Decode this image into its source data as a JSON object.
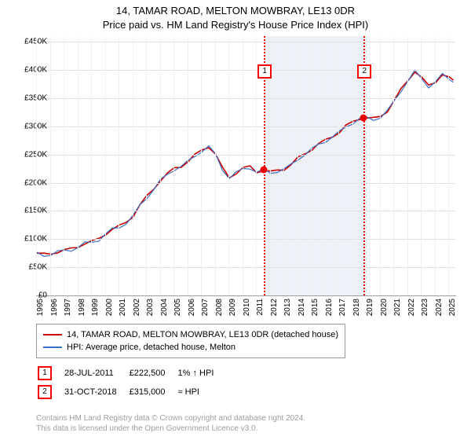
{
  "title_line1": "14, TAMAR ROAD, MELTON MOWBRAY, LE13 0DR",
  "title_line2": "Price paid vs. HM Land Registry's House Price Index (HPI)",
  "chart": {
    "x_start_year": 1995,
    "x_end_year": 2025.5,
    "x_ticks": [
      1995,
      1996,
      1997,
      1998,
      1999,
      2000,
      2001,
      2002,
      2003,
      2004,
      2005,
      2006,
      2007,
      2008,
      2009,
      2010,
      2011,
      2012,
      2013,
      2014,
      2015,
      2016,
      2017,
      2018,
      2019,
      2020,
      2021,
      2022,
      2023,
      2024,
      2025
    ],
    "y_min": 0,
    "y_max": 460000,
    "y_ticks": [
      0,
      50000,
      100000,
      150000,
      200000,
      250000,
      300000,
      350000,
      400000,
      450000
    ],
    "y_tick_labels": [
      "£0",
      "£50K",
      "£100K",
      "£150K",
      "£200K",
      "£250K",
      "£300K",
      "£350K",
      "£400K",
      "£450K"
    ],
    "grid_color": "#e0e0e0",
    "grid_color_minor": "#f0f0f0",
    "band": {
      "start": 2011.57,
      "end": 2018.83,
      "color": "#eef2f8"
    },
    "series": [
      {
        "name": "property",
        "color": "#cc0000",
        "width": 1.6,
        "data": [
          [
            1995.0,
            75000
          ],
          [
            1995.5,
            72000
          ],
          [
            1996.0,
            74000
          ],
          [
            1996.5,
            78000
          ],
          [
            1997.0,
            80000
          ],
          [
            1997.5,
            82000
          ],
          [
            1998.0,
            87000
          ],
          [
            1998.5,
            93000
          ],
          [
            1999.0,
            95000
          ],
          [
            1999.5,
            100000
          ],
          [
            2000.0,
            110000
          ],
          [
            2000.5,
            118000
          ],
          [
            2001.0,
            122000
          ],
          [
            2001.5,
            130000
          ],
          [
            2002.0,
            142000
          ],
          [
            2002.5,
            160000
          ],
          [
            2003.0,
            175000
          ],
          [
            2003.5,
            190000
          ],
          [
            2004.0,
            205000
          ],
          [
            2004.5,
            215000
          ],
          [
            2005.0,
            225000
          ],
          [
            2005.5,
            230000
          ],
          [
            2006.0,
            238000
          ],
          [
            2006.5,
            248000
          ],
          [
            2007.0,
            258000
          ],
          [
            2007.5,
            265000
          ],
          [
            2008.0,
            250000
          ],
          [
            2008.5,
            225000
          ],
          [
            2009.0,
            210000
          ],
          [
            2009.5,
            218000
          ],
          [
            2010.0,
            225000
          ],
          [
            2010.5,
            228000
          ],
          [
            2011.0,
            220000
          ],
          [
            2011.5,
            222500
          ],
          [
            2012.0,
            218000
          ],
          [
            2012.5,
            222000
          ],
          [
            2013.0,
            225000
          ],
          [
            2013.5,
            232000
          ],
          [
            2014.0,
            243000
          ],
          [
            2014.5,
            252000
          ],
          [
            2015.0,
            260000
          ],
          [
            2015.5,
            268000
          ],
          [
            2016.0,
            275000
          ],
          [
            2016.5,
            283000
          ],
          [
            2017.0,
            290000
          ],
          [
            2017.5,
            300000
          ],
          [
            2018.0,
            308000
          ],
          [
            2018.5,
            315000
          ],
          [
            2019.0,
            315000
          ],
          [
            2019.5,
            313000
          ],
          [
            2020.0,
            318000
          ],
          [
            2020.5,
            328000
          ],
          [
            2021.0,
            345000
          ],
          [
            2021.5,
            365000
          ],
          [
            2022.0,
            383000
          ],
          [
            2022.5,
            398000
          ],
          [
            2023.0,
            385000
          ],
          [
            2023.5,
            372000
          ],
          [
            2024.0,
            380000
          ],
          [
            2024.5,
            392000
          ],
          [
            2025.0,
            385000
          ],
          [
            2025.3,
            382000
          ]
        ]
      },
      {
        "name": "hpi",
        "color": "#3b6fc4",
        "width": 1.2,
        "data": [
          [
            1995.0,
            74000
          ],
          [
            1995.5,
            71000
          ],
          [
            1996.0,
            73000
          ],
          [
            1996.5,
            77000
          ],
          [
            1997.0,
            79000
          ],
          [
            1997.5,
            81000
          ],
          [
            1998.0,
            86000
          ],
          [
            1998.5,
            92000
          ],
          [
            1999.0,
            94000
          ],
          [
            1999.5,
            99000
          ],
          [
            2000.0,
            109000
          ],
          [
            2000.5,
            117000
          ],
          [
            2001.0,
            121000
          ],
          [
            2001.5,
            129000
          ],
          [
            2002.0,
            141000
          ],
          [
            2002.5,
            159000
          ],
          [
            2003.0,
            174000
          ],
          [
            2003.5,
            189000
          ],
          [
            2004.0,
            204000
          ],
          [
            2004.5,
            214000
          ],
          [
            2005.0,
            224000
          ],
          [
            2005.5,
            229000
          ],
          [
            2006.0,
            237000
          ],
          [
            2006.5,
            247000
          ],
          [
            2007.0,
            257000
          ],
          [
            2007.5,
            264000
          ],
          [
            2008.0,
            249000
          ],
          [
            2008.5,
            224000
          ],
          [
            2009.0,
            209000
          ],
          [
            2009.5,
            217000
          ],
          [
            2010.0,
            224000
          ],
          [
            2010.5,
            227000
          ],
          [
            2011.0,
            219000
          ],
          [
            2011.5,
            221500
          ],
          [
            2012.0,
            217000
          ],
          [
            2012.5,
            221000
          ],
          [
            2013.0,
            224000
          ],
          [
            2013.5,
            231000
          ],
          [
            2014.0,
            242000
          ],
          [
            2014.5,
            251000
          ],
          [
            2015.0,
            259000
          ],
          [
            2015.5,
            267000
          ],
          [
            2016.0,
            274000
          ],
          [
            2016.5,
            282000
          ],
          [
            2017.0,
            289000
          ],
          [
            2017.5,
            299000
          ],
          [
            2018.0,
            307000
          ],
          [
            2018.5,
            314000
          ],
          [
            2019.0,
            314000
          ],
          [
            2019.5,
            312000
          ],
          [
            2020.0,
            317000
          ],
          [
            2020.5,
            327000
          ],
          [
            2021.0,
            344000
          ],
          [
            2021.5,
            364000
          ],
          [
            2022.0,
            382000
          ],
          [
            2022.5,
            397000
          ],
          [
            2023.0,
            384000
          ],
          [
            2023.5,
            371000
          ],
          [
            2024.0,
            379000
          ],
          [
            2024.5,
            391000
          ],
          [
            2025.0,
            384000
          ],
          [
            2025.3,
            381000
          ]
        ]
      }
    ],
    "sale_markers": [
      {
        "n": "1",
        "x": 2011.57,
        "y": 222500,
        "point": true,
        "label_y": 60
      },
      {
        "n": "2",
        "x": 2018.83,
        "y": 315000,
        "point": true,
        "label_y": 60
      }
    ]
  },
  "legend": {
    "rows": [
      {
        "color": "#cc0000",
        "label": "14, TAMAR ROAD, MELTON MOWBRAY, LE13 0DR (detached house)"
      },
      {
        "color": "#3b6fc4",
        "label": "HPI: Average price, detached house, Melton"
      }
    ]
  },
  "sales_table": {
    "rows": [
      {
        "n": "1",
        "date": "28-JUL-2011",
        "price": "£222,500",
        "delta": "1% ↑ HPI"
      },
      {
        "n": "2",
        "date": "31-OCT-2018",
        "price": "£315,000",
        "delta": "≈ HPI"
      }
    ]
  },
  "footer_line1": "Contains HM Land Registry data © Crown copyright and database right 2024.",
  "footer_line2": "This data is licensed under the Open Government Licence v3.0."
}
